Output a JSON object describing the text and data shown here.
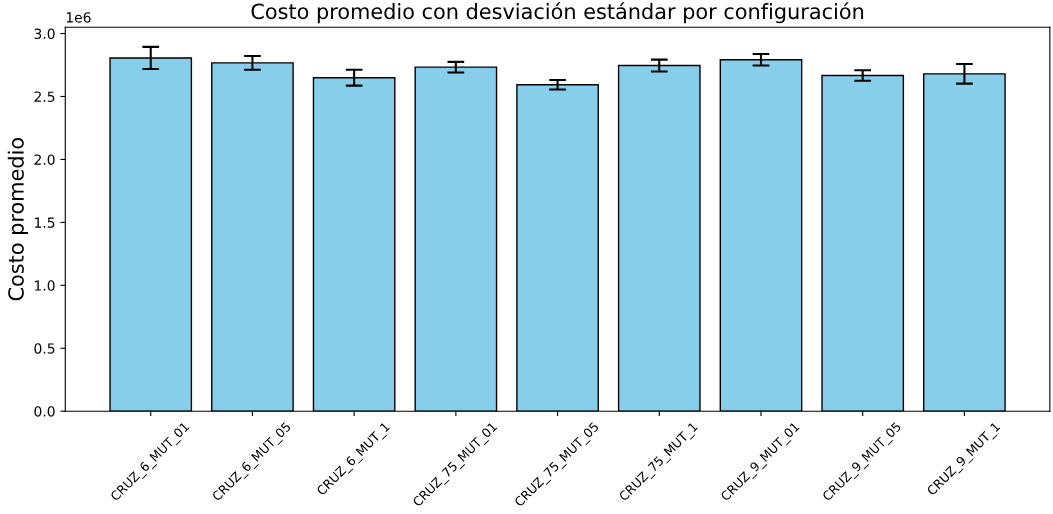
{
  "chart_data": {
    "type": "bar",
    "title": "Costo promedio con desviación estándar por configuración",
    "ylabel": "Costo promedio",
    "categories": [
      "CRUZ_6_MUT_01",
      "CRUZ_6_MUT_05",
      "CRUZ_6_MUT_1",
      "CRUZ_75_MUT_01",
      "CRUZ_75_MUT_05",
      "CRUZ_75_MUT_1",
      "CRUZ_9_MUT_01",
      "CRUZ_9_MUT_05",
      "CRUZ_9_MUT_1"
    ],
    "values": [
      2.806,
      2.767,
      2.649,
      2.733,
      2.593,
      2.746,
      2.792,
      2.667,
      2.68
    ],
    "errors": [
      0.088,
      0.055,
      0.063,
      0.042,
      0.038,
      0.047,
      0.046,
      0.042,
      0.078
    ],
    "color": "#87ceeb",
    "ylim": [
      0.0,
      3.05
    ],
    "yticks": [
      {
        "value": 0,
        "label": "0.0"
      },
      0.5,
      {
        "value": 1,
        "label": "1.0"
      },
      1.5,
      {
        "value": 2,
        "label": "2.0"
      },
      2.5,
      {
        "value": 3,
        "label": "3.0"
      }
    ],
    "annotations": [
      "1e6"
    ],
    "grid": false,
    "legend": false
  }
}
